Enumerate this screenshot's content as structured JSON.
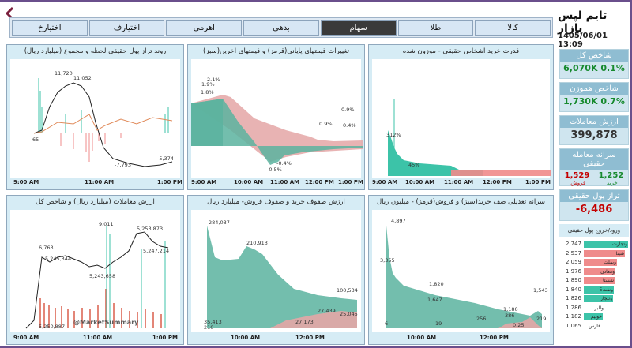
{
  "tabs": [
    "کالا",
    "طلا",
    "سهام",
    "بدهی",
    "اهرمی",
    "اختیارف",
    "اختیارخ"
  ],
  "active_tab": "سهام",
  "sidebar": {
    "title": "تایم لپس بازار",
    "date": "1405/06/01 13:09",
    "index_total": {
      "label": "شاخص کل",
      "value": "6,070K",
      "pct": "0.1%"
    },
    "index_equal": {
      "label": "شاخص هموزن",
      "value": "1,730K",
      "pct": "0.7%"
    },
    "trade_value": {
      "label": "ارزش معاملات",
      "value": "399,878"
    },
    "per_capita": {
      "label": "سرانه معامله حقیقی",
      "buy": "1,252",
      "buy_label": "خرید",
      "sell": "1,529",
      "sell_label": "فروش"
    },
    "net_flow": {
      "label": "تراز پول حقیقی",
      "value": "-6,486"
    },
    "flow_header": "ورود/خروج پول حقیقی",
    "flows": [
      {
        "num": "2,747",
        "name": "وتجارت",
        "color": "#3cc3a8",
        "frac": 1.0
      },
      {
        "num": "2,537",
        "name": "شپنا",
        "color": "#ef8b8b",
        "frac": 0.92
      },
      {
        "num": "2,059",
        "name": "وبملت",
        "color": "#ef8b8b",
        "frac": 0.75
      },
      {
        "num": "1,976",
        "name": "ومعادن",
        "color": "#ef8b8b",
        "frac": 0.72
      },
      {
        "num": "1,890",
        "name": "شستا",
        "color": "#ef8b8b",
        "frac": 0.69
      },
      {
        "num": "1,840",
        "name": "ونفت5",
        "color": "#3cc3a8",
        "frac": 0.67
      },
      {
        "num": "1,826",
        "name": "ونتجار",
        "color": "#3cc3a8",
        "frac": 0.66
      },
      {
        "num": "1,286",
        "name": "وآلبر",
        "color": "#ffffff",
        "frac": 0.47
      },
      {
        "num": "1,182",
        "name": "خوتیم",
        "color": "#3cc3a8",
        "frac": 0.43
      },
      {
        "num": "1,065",
        "name": "فارس",
        "color": "#ffffff",
        "frac": 0.39
      }
    ]
  },
  "panels": {
    "p1": {
      "title": "قدرت خرید اشخاص حقیقی - موزون شده",
      "labels": [
        "312%",
        "45%"
      ],
      "x_ticks": [
        "9:00 AM",
        "10:00 AM",
        "11:00 AM",
        "12:00 PM",
        "1:00 PM"
      ]
    },
    "p2": {
      "title": "تغییرات قیمتهای پایانی(قرمز) و قیمتهای آخرین(سبز)",
      "labels": [
        "2.1%",
        "1.9%",
        "1.8%",
        "0.9%",
        "0.9%",
        "0.4%",
        "-0.4%",
        "-0.5%"
      ],
      "x_ticks": [
        "9:00 AM",
        "10:00 AM",
        "11:00 AM",
        "12:00 PM",
        "1:00 PM"
      ]
    },
    "p3": {
      "title": "روند تراز پول حقیقی لحظه و مجموع (میلیارد ریال)",
      "labels": [
        "11,720",
        "11,052",
        "65",
        "-7,793",
        "-5,374"
      ],
      "x_ticks": [
        "9:00 AM",
        "11:00 AM",
        "1:00 PM"
      ]
    },
    "p4": {
      "title": "سرانه تعدیلی صف خرید(سبز) و فروش(قرمز) - میلیون ریال",
      "labels": [
        "4,897",
        "3,355",
        "1,820",
        "1,647",
        "1,543",
        "1,180",
        "386",
        "256",
        "219",
        "19",
        "6",
        "0.25"
      ],
      "x_ticks": [
        "10:00 AM",
        "12:00 PM"
      ]
    },
    "p5": {
      "title": "ارزش صفوف خرید و صفوف فروش- میلیارد ریال",
      "labels": [
        "284,037",
        "210,913",
        "100,534",
        "27,439",
        "25,045",
        "27,173",
        "35,413",
        "210"
      ],
      "x_ticks": [
        "10:00 AM",
        "12:00 PM"
      ]
    },
    "p6": {
      "title": "ارزش معاملات (میلیارد ریال) و شاخص کل",
      "labels": [
        "9,011",
        "6,763",
        "5,245,344",
        "5,243,658",
        "5,253,873",
        "5,247,214",
        "5,250,887"
      ],
      "watermark": "@MarketSummary",
      "x_ticks": [
        "9:00 AM",
        "11:00 AM",
        "1:00 PM"
      ]
    }
  },
  "colors": {
    "accent": "#8fbdd2",
    "green": "#3cc3a8",
    "red": "#ef8b8b",
    "frame": "#6a4f8c"
  }
}
